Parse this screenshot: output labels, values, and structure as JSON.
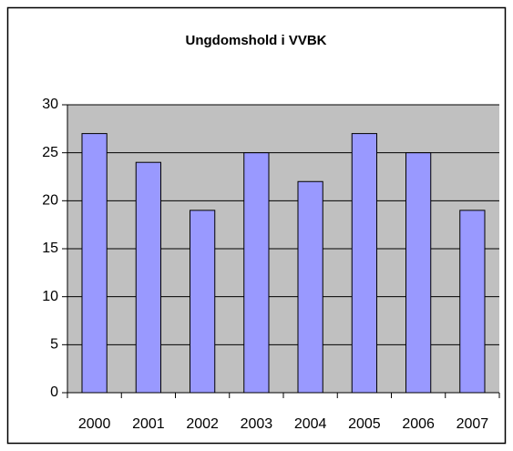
{
  "chart_data": {
    "type": "bar",
    "title": "Ungdomshold i VVBK",
    "categories": [
      "2000",
      "2001",
      "2002",
      "2003",
      "2004",
      "2005",
      "2006",
      "2007"
    ],
    "values": [
      27,
      24,
      19,
      25,
      22,
      27,
      25,
      19
    ],
    "color": "#9999ff",
    "ylim": [
      0,
      30
    ],
    "yticks": [
      0,
      5,
      10,
      15,
      20,
      25,
      30
    ],
    "grid": true
  }
}
